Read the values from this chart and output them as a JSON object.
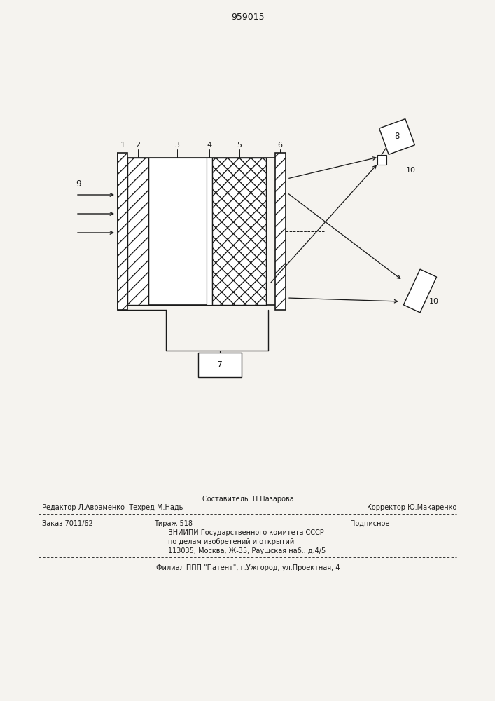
{
  "title_number": "959015",
  "bg_color": "#f5f3ef",
  "line_color": "#1a1a1a",
  "fig_width": 7.07,
  "fig_height": 10.0,
  "footer_line1": "Составитель  Н.Назарова",
  "footer_line2": "Редактор Л.Авраменко  Техред М.Надь                  Корректор Ю.Макаренко",
  "footer_line3": "Заказ 7011/62         Тираж 518                   Подписное",
  "footer_line4": "      ВНИИПИ Государственного комитета СССР",
  "footer_line5": "       по делам изобретений и открытий",
  "footer_line6": "      113035, Москва, Ж-35, Раушская наб.. д.4/5",
  "footer_line7": "Филиал ППП \"Патент\", г.Ужгород, ул.Проектная, 4"
}
